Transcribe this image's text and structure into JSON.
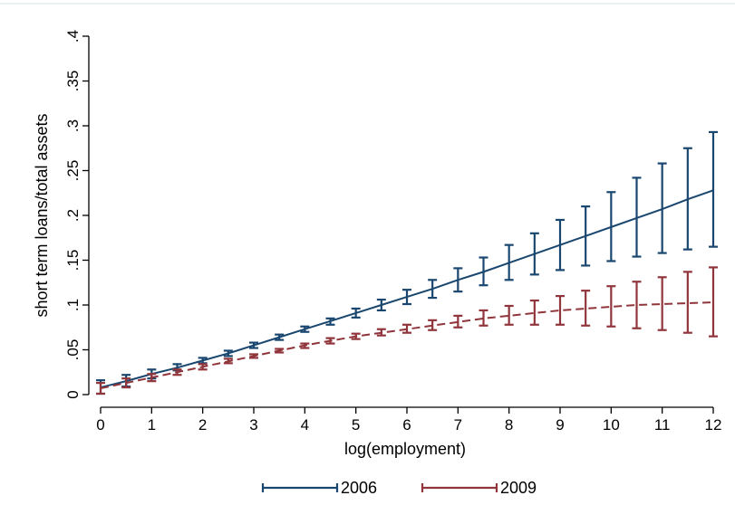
{
  "chart_data": {
    "type": "line",
    "xlabel": "log(employment)",
    "ylabel": "short term loans/total assets",
    "x_ticks": [
      "0",
      "1",
      "2",
      "3",
      "4",
      "5",
      "6",
      "7",
      "8",
      "9",
      "10",
      "11",
      "12"
    ],
    "y_ticks": [
      "0",
      ".05",
      ".1",
      ".15",
      ".2",
      ".25",
      ".3",
      ".35",
      ".4"
    ],
    "xlim": [
      0,
      12
    ],
    "ylim": [
      0,
      0.4
    ],
    "grid": false,
    "legend_position": "bottom",
    "x": [
      0,
      0.5,
      1,
      1.5,
      2,
      2.5,
      3,
      3.5,
      4,
      4.5,
      5,
      5.5,
      6,
      6.5,
      7,
      7.5,
      8,
      8.5,
      9,
      9.5,
      10,
      10.5,
      11,
      11.5,
      12
    ],
    "series": [
      {
        "name": "2006",
        "color": "#1a476f",
        "line_style": "solid",
        "values": [
          0.008,
          0.015,
          0.023,
          0.03,
          0.038,
          0.046,
          0.055,
          0.064,
          0.073,
          0.082,
          0.091,
          0.1,
          0.109,
          0.118,
          0.128,
          0.137,
          0.147,
          0.157,
          0.167,
          0.177,
          0.187,
          0.197,
          0.207,
          0.218,
          0.228
        ],
        "ci_low": [
          0.001,
          0.009,
          0.018,
          0.027,
          0.035,
          0.043,
          0.052,
          0.061,
          0.07,
          0.078,
          0.086,
          0.094,
          0.101,
          0.108,
          0.115,
          0.122,
          0.128,
          0.134,
          0.139,
          0.144,
          0.149,
          0.154,
          0.158,
          0.162,
          0.165
        ],
        "ci_high": [
          0.016,
          0.022,
          0.028,
          0.034,
          0.041,
          0.049,
          0.058,
          0.067,
          0.076,
          0.085,
          0.096,
          0.106,
          0.117,
          0.128,
          0.141,
          0.153,
          0.167,
          0.18,
          0.195,
          0.21,
          0.226,
          0.242,
          0.258,
          0.275,
          0.293
        ]
      },
      {
        "name": "2009",
        "color": "#90353b",
        "line_style": "dashed",
        "values": [
          0.007,
          0.013,
          0.019,
          0.025,
          0.031,
          0.037,
          0.043,
          0.049,
          0.055,
          0.06,
          0.065,
          0.069,
          0.073,
          0.077,
          0.081,
          0.085,
          0.088,
          0.091,
          0.094,
          0.096,
          0.098,
          0.1,
          0.101,
          0.102,
          0.103
        ],
        "ci_low": [
          0.001,
          0.008,
          0.015,
          0.022,
          0.028,
          0.035,
          0.041,
          0.047,
          0.052,
          0.057,
          0.062,
          0.066,
          0.069,
          0.072,
          0.075,
          0.077,
          0.078,
          0.078,
          0.078,
          0.077,
          0.076,
          0.074,
          0.072,
          0.069,
          0.065
        ],
        "ci_high": [
          0.013,
          0.018,
          0.023,
          0.028,
          0.034,
          0.04,
          0.045,
          0.051,
          0.057,
          0.063,
          0.068,
          0.073,
          0.078,
          0.083,
          0.088,
          0.094,
          0.099,
          0.105,
          0.11,
          0.116,
          0.121,
          0.126,
          0.131,
          0.137,
          0.142
        ]
      }
    ]
  }
}
